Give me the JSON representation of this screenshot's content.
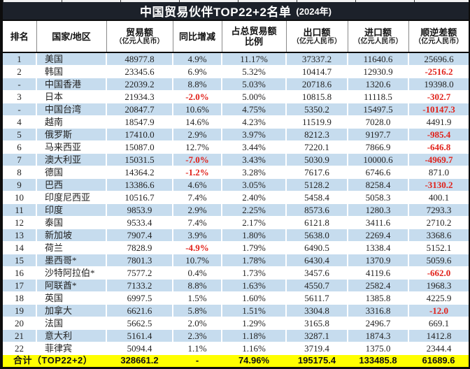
{
  "title": {
    "main": "中国贸易伙伴TOP22+2名单",
    "year": "(2024年)"
  },
  "colors": {
    "title_bg": "#1c212a",
    "row_alt_blue": "#c6dcee",
    "total_bg": "#ffff00",
    "negative_red": "#e1221b",
    "border_black": "#0d0d0d"
  },
  "chart_data": {
    "type": "table",
    "title": "中国贸易伙伴TOP22+2名单 (2024年)",
    "unit_note": "（亿元人民币）",
    "columns": [
      {
        "label": "排名",
        "sub": "",
        "sub_small": false
      },
      {
        "label": "国家/地区",
        "sub": "",
        "sub_small": false
      },
      {
        "label": "贸易额",
        "sub": "（亿元人民币）",
        "sub_small": true
      },
      {
        "label": "同比增减",
        "sub": "",
        "sub_small": false
      },
      {
        "label": "占总贸易额",
        "sub": "比例",
        "sub_small": false
      },
      {
        "label": "出口额",
        "sub": "（亿元人民币）",
        "sub_small": true
      },
      {
        "label": "进口额",
        "sub": "（亿元人民币）",
        "sub_small": true
      },
      {
        "label": "顺逆差额",
        "sub": "（亿元人民币）",
        "sub_small": true
      }
    ],
    "rows": [
      [
        "1",
        "美国",
        "48977.8",
        "4.9%",
        "11.17%",
        "37337.2",
        "11640.6",
        "25696.6"
      ],
      [
        "2",
        "韩国",
        "23345.6",
        "6.9%",
        "5.32%",
        "10414.7",
        "12930.9",
        "-2516.2"
      ],
      [
        "-",
        "中国香港",
        "22039.2",
        "8.8%",
        "5.03%",
        "20718.6",
        "1320.6",
        "19398.0"
      ],
      [
        "3",
        "日本",
        "21934.3",
        "-2.0%",
        "5.00%",
        "10815.8",
        "11118.5",
        "-302.7"
      ],
      [
        "-",
        "中国台湾",
        "20847.7",
        "10.6%",
        "4.75%",
        "5350.2",
        "15497.5",
        "-10147.3"
      ],
      [
        "4",
        "越南",
        "18547.9",
        "14.6%",
        "4.23%",
        "11519.9",
        "7028.0",
        "4491.9"
      ],
      [
        "5",
        "俄罗斯",
        "17410.0",
        "2.9%",
        "3.97%",
        "8212.3",
        "9197.7",
        "-985.4"
      ],
      [
        "6",
        "马来西亚",
        "15087.0",
        "12.7%",
        "3.44%",
        "7220.1",
        "7866.9",
        "-646.8"
      ],
      [
        "7",
        "澳大利亚",
        "15031.5",
        "-7.0%",
        "3.43%",
        "5030.9",
        "10000.6",
        "-4969.7"
      ],
      [
        "8",
        "德国",
        "14364.2",
        "-1.2%",
        "3.28%",
        "7617.6",
        "6746.6",
        "871.0"
      ],
      [
        "9",
        "巴西",
        "13386.6",
        "4.6%",
        "3.05%",
        "5128.2",
        "8258.4",
        "-3130.2"
      ],
      [
        "10",
        "印度尼西亚",
        "10516.7",
        "7.4%",
        "2.40%",
        "5458.4",
        "5058.3",
        "400.1"
      ],
      [
        "11",
        "印度",
        "9853.9",
        "2.9%",
        "2.25%",
        "8573.6",
        "1280.3",
        "7293.3"
      ],
      [
        "12",
        "泰国",
        "9533.4",
        "7.4%",
        "2.17%",
        "6121.8",
        "3411.6",
        "2710.2"
      ],
      [
        "13",
        "新加坡",
        "7907.4",
        "3.9%",
        "1.80%",
        "5638.0",
        "2269.4",
        "3368.6"
      ],
      [
        "14",
        "荷兰",
        "7828.9",
        "-4.9%",
        "1.79%",
        "6490.5",
        "1338.4",
        "5152.1"
      ],
      [
        "15",
        "墨西哥*",
        "7801.3",
        "10.7%",
        "1.78%",
        "6430.4",
        "1370.9",
        "5059.6"
      ],
      [
        "16",
        "沙特阿拉伯*",
        "7577.2",
        "0.4%",
        "1.73%",
        "3457.6",
        "4119.6",
        "-662.0"
      ],
      [
        "17",
        "阿联酋*",
        "7133.2",
        "8.8%",
        "1.63%",
        "4550.7",
        "2582.4",
        "1968.3"
      ],
      [
        "18",
        "英国",
        "6997.5",
        "1.5%",
        "1.60%",
        "5611.7",
        "1385.8",
        "4225.9"
      ],
      [
        "19",
        "加拿大",
        "6621.6",
        "5.8%",
        "1.51%",
        "3304.8",
        "3316.8",
        "-12.0"
      ],
      [
        "20",
        "法国",
        "5662.5",
        "2.0%",
        "1.29%",
        "3165.8",
        "2496.7",
        "669.1"
      ],
      [
        "21",
        "意大利",
        "5161.4",
        "2.3%",
        "1.18%",
        "3287.1",
        "1874.3",
        "1412.8"
      ],
      [
        "22",
        "菲律宾",
        "5094.4",
        "1.1%",
        "1.16%",
        "3719.4",
        "1375.0",
        "2344.4"
      ]
    ],
    "total": {
      "label": "合计（TOP22+2）",
      "trade": "328661.2",
      "yoy": "-",
      "share": "74.96%",
      "export": "195175.4",
      "import": "133485.8",
      "balance": "61689.6"
    }
  }
}
